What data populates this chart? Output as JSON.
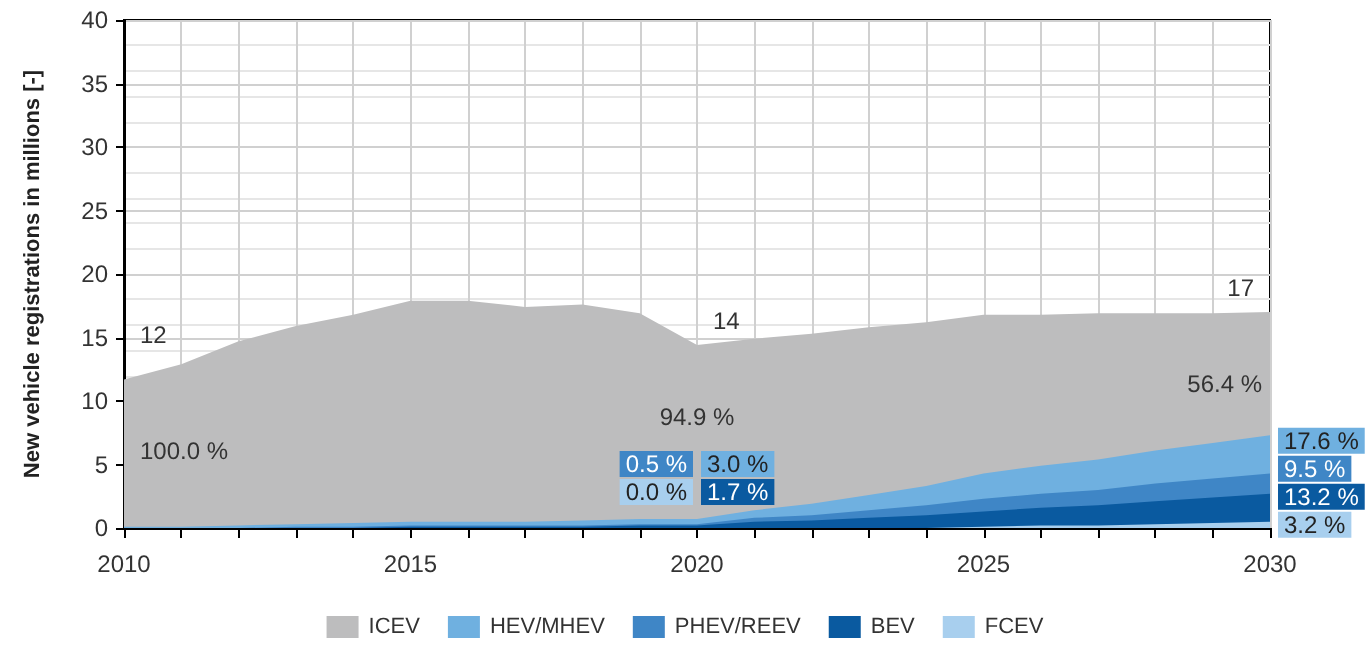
{
  "chart_data": {
    "type": "area",
    "stacked": true,
    "ylabel": "New vehicle registrations in millions [-]",
    "x": [
      2010,
      2011,
      2012,
      2013,
      2014,
      2015,
      2016,
      2017,
      2018,
      2019,
      2020,
      2021,
      2022,
      2023,
      2024,
      2025,
      2026,
      2027,
      2028,
      2029,
      2030
    ],
    "series": [
      {
        "name": "FCEV",
        "color": "#a8cfee",
        "values": [
          0,
          0,
          0,
          0,
          0,
          0,
          0,
          0,
          0,
          0,
          0,
          0,
          0,
          0,
          0,
          0.1,
          0.2,
          0.2,
          0.3,
          0.4,
          0.5
        ]
      },
      {
        "name": "BEV",
        "color": "#0a5aa0",
        "values": [
          0,
          0,
          0,
          0,
          0,
          0.1,
          0.1,
          0.1,
          0.1,
          0.2,
          0.2,
          0.5,
          0.6,
          0.8,
          1.0,
          1.2,
          1.4,
          1.6,
          1.8,
          2.0,
          2.2
        ]
      },
      {
        "name": "PHEV/REEV",
        "color": "#3f86c6",
        "values": [
          0,
          0,
          0,
          0.1,
          0.1,
          0.1,
          0.1,
          0.1,
          0.1,
          0.1,
          0.1,
          0.3,
          0.4,
          0.6,
          0.8,
          1.0,
          1.1,
          1.2,
          1.4,
          1.5,
          1.6
        ]
      },
      {
        "name": "HEV/MHEV",
        "color": "#6fb0e0",
        "values": [
          0.1,
          0.1,
          0.2,
          0.2,
          0.3,
          0.3,
          0.3,
          0.3,
          0.4,
          0.4,
          0.4,
          0.6,
          0.9,
          1.2,
          1.5,
          2.0,
          2.2,
          2.4,
          2.6,
          2.8,
          3.0
        ]
      },
      {
        "name": "ICEV",
        "color": "#bdbdbe",
        "values": [
          11.6,
          12.8,
          14.5,
          15.6,
          16.4,
          17.4,
          17.4,
          16.9,
          17.0,
          16.2,
          13.7,
          13.5,
          13.4,
          13.2,
          12.9,
          12.5,
          11.9,
          11.5,
          10.8,
          10.2,
          9.7
        ]
      }
    ],
    "totals": [
      "12",
      null,
      null,
      null,
      null,
      null,
      null,
      null,
      null,
      null,
      "14",
      null,
      null,
      null,
      null,
      null,
      null,
      null,
      null,
      null,
      "17"
    ],
    "annotations": [
      {
        "text": "100.0 %",
        "x": 2010,
        "y": 11.7
      },
      {
        "text": "94.9 %",
        "x": 2020,
        "y": 14.4
      },
      {
        "text": "0.5 %",
        "x": 2020,
        "y": 0.25
      },
      {
        "text": "0.0 %",
        "x": 2020,
        "y": 0
      },
      {
        "text": "3.0 %",
        "x": 2020,
        "y": 0.5
      },
      {
        "text": "1.7 %",
        "x": 2020,
        "y": 0.1
      },
      {
        "text": "56.4 %",
        "x": 2030,
        "y": 17
      },
      {
        "text": "17.6 %",
        "x": 2030,
        "y": 5.8
      },
      {
        "text": "9.5 %",
        "x": 2030,
        "y": 3.5
      },
      {
        "text": "13.2 %",
        "x": 2030,
        "y": 1.6
      },
      {
        "text": "3.2 %",
        "x": 2030,
        "y": 0.25
      }
    ],
    "xlim": [
      2010,
      2030
    ],
    "xticks": [
      2010,
      2015,
      2020,
      2025,
      2030
    ],
    "ylim": [
      0,
      40
    ],
    "yticks": [
      0,
      5,
      10,
      15,
      20,
      25,
      30,
      35,
      40
    ],
    "grid": true,
    "legend": "bottom"
  }
}
